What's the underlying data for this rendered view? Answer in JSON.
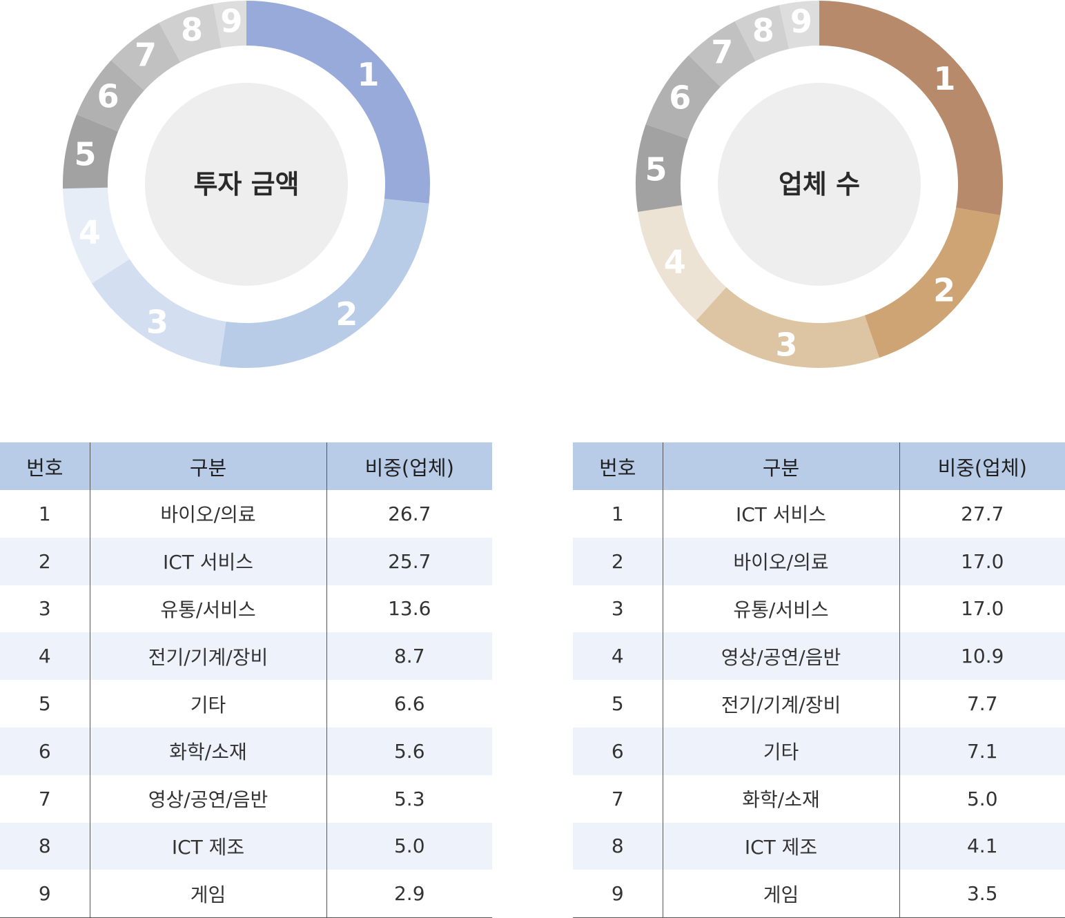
{
  "chart_data": [
    {
      "type": "pie",
      "title": "투자 금액",
      "labels": [
        "1",
        "2",
        "3",
        "4",
        "5",
        "6",
        "7",
        "8",
        "9"
      ],
      "values": [
        26.7,
        25.7,
        13.6,
        8.7,
        6.6,
        5.6,
        5.3,
        5.0,
        2.9
      ],
      "colors": [
        "#97aad9",
        "#b8cce8",
        "#d3dff1",
        "#e7edf7",
        "#a2a2a2",
        "#b0b1b0",
        "#c0c1c0",
        "#cfd0cf",
        "#dcdddc"
      ]
    },
    {
      "type": "pie",
      "title": "업체 수",
      "labels": [
        "1",
        "2",
        "3",
        "4",
        "5",
        "6",
        "7",
        "8",
        "9"
      ],
      "values": [
        27.7,
        17.0,
        17.0,
        10.9,
        7.7,
        7.1,
        5.0,
        4.1,
        3.5
      ],
      "colors": [
        "#b68a6a",
        "#cfa474",
        "#ddc4a2",
        "#ede3d5",
        "#a2a2a2",
        "#b0b1b0",
        "#c0c1c0",
        "#cfd0cf",
        "#dcdddc"
      ]
    }
  ],
  "tables": [
    {
      "headers": [
        "번호",
        "구분",
        "비중(업체)"
      ],
      "rows": [
        [
          "1",
          "바이오/의료",
          "26.7"
        ],
        [
          "2",
          "ICT 서비스",
          "25.7"
        ],
        [
          "3",
          "유통/서비스",
          "13.6"
        ],
        [
          "4",
          "전기/기계/장비",
          "8.7"
        ],
        [
          "5",
          "기타",
          "6.6"
        ],
        [
          "6",
          "화학/소재",
          "5.6"
        ],
        [
          "7",
          "영상/공연/음반",
          "5.3"
        ],
        [
          "8",
          "ICT 제조",
          "5.0"
        ],
        [
          "9",
          "게임",
          "2.9"
        ]
      ]
    },
    {
      "headers": [
        "번호",
        "구분",
        "비중(업체)"
      ],
      "rows": [
        [
          "1",
          "ICT 서비스",
          "27.7"
        ],
        [
          "2",
          "바이오/의료",
          "17.0"
        ],
        [
          "3",
          "유통/서비스",
          "17.0"
        ],
        [
          "4",
          "영상/공연/음반",
          "10.9"
        ],
        [
          "5",
          "전기/기계/장비",
          "7.7"
        ],
        [
          "6",
          "기타",
          "7.1"
        ],
        [
          "7",
          "화학/소재",
          "5.0"
        ],
        [
          "8",
          "ICT 제조",
          "4.1"
        ],
        [
          "9",
          "게임",
          "3.5"
        ]
      ]
    }
  ],
  "style": {
    "inner_fill": "#edeeed",
    "text_color": "#2a2a2a"
  }
}
